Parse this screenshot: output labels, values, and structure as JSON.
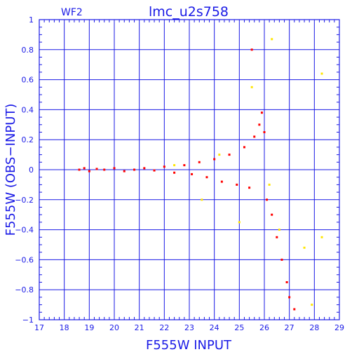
{
  "chart_data": {
    "type": "scatter",
    "title": "lmc_u2s758",
    "chip_label": "WF2",
    "xlabel": "F555W INPUT",
    "ylabel": "F555W (OBS−INPUT)",
    "xlim": [
      17,
      29
    ],
    "ylim": [
      -1,
      1
    ],
    "x_ticks": [
      "17",
      "18",
      "19",
      "20",
      "21",
      "22",
      "23",
      "24",
      "25",
      "26",
      "27",
      "28",
      "29"
    ],
    "y_ticks": [
      "1",
      "0.8",
      "0.6",
      "0.4",
      "0.2",
      "0",
      "−0.2",
      "−0.4",
      "−0.6",
      "−0.8",
      "−1"
    ],
    "grid": true,
    "series": [
      {
        "color": "#ff0000",
        "points": [
          [
            18.6,
            0.0
          ],
          [
            18.8,
            0.01
          ],
          [
            19.0,
            -0.01
          ],
          [
            19.3,
            0.005
          ],
          [
            19.6,
            0.0
          ],
          [
            20.0,
            0.01
          ],
          [
            20.4,
            -0.01
          ],
          [
            20.8,
            0.0
          ],
          [
            21.2,
            0.01
          ],
          [
            21.6,
            -0.005
          ],
          [
            22.0,
            0.02
          ],
          [
            22.4,
            -0.02
          ],
          [
            22.8,
            0.03
          ],
          [
            23.1,
            -0.03
          ],
          [
            23.4,
            0.05
          ],
          [
            23.7,
            -0.05
          ],
          [
            24.0,
            0.07
          ],
          [
            24.3,
            -0.08
          ],
          [
            24.6,
            0.1
          ],
          [
            24.9,
            -0.1
          ],
          [
            25.2,
            0.15
          ],
          [
            25.4,
            -0.12
          ],
          [
            25.6,
            0.22
          ],
          [
            25.8,
            0.3
          ],
          [
            25.9,
            0.38
          ],
          [
            26.0,
            0.25
          ],
          [
            26.1,
            -0.2
          ],
          [
            26.3,
            -0.3
          ],
          [
            26.5,
            -0.45
          ],
          [
            26.7,
            -0.6
          ],
          [
            26.9,
            -0.75
          ],
          [
            27.0,
            -0.85
          ],
          [
            27.2,
            -0.93
          ],
          [
            25.5,
            0.8
          ]
        ]
      },
      {
        "color": "#ffe600",
        "points": [
          [
            22.4,
            0.03
          ],
          [
            23.5,
            -0.2
          ],
          [
            24.2,
            0.1
          ],
          [
            25.0,
            -0.35
          ],
          [
            25.5,
            0.55
          ],
          [
            26.3,
            0.87
          ],
          [
            26.6,
            -0.4
          ],
          [
            27.6,
            -0.52
          ],
          [
            27.9,
            -0.9
          ],
          [
            28.3,
            -0.45
          ],
          [
            28.3,
            0.64
          ],
          [
            26.2,
            -0.1
          ]
        ]
      }
    ]
  }
}
